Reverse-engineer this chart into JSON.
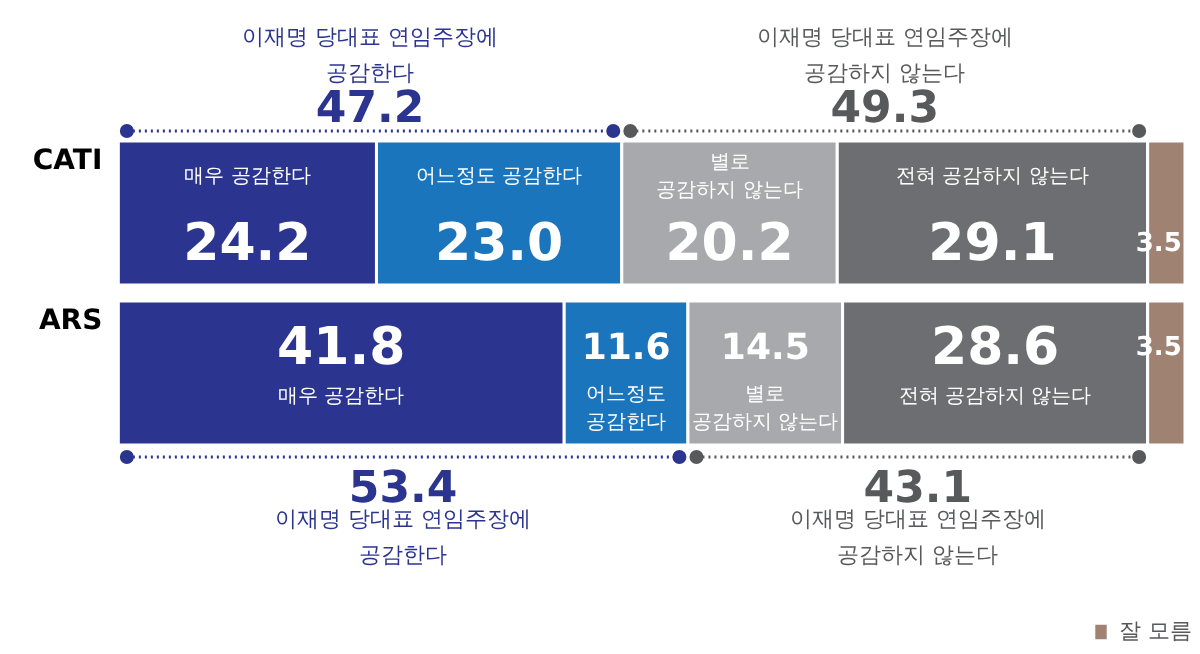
{
  "chart_data": {
    "type": "bar",
    "orientation": "horizontal",
    "stacked": true,
    "legend": "bottom right",
    "categories": [
      "CATI",
      "ARS"
    ],
    "series": [
      {
        "name": "매우 공감한다",
        "color": "#2b3590",
        "values": [
          24.2,
          41.8
        ],
        "value_labels": [
          "24.2",
          "41.8"
        ]
      },
      {
        "name": "어느정도 공감한다",
        "color": "#1b75bc",
        "values": [
          23.0,
          11.6
        ],
        "value_labels": [
          "23.0",
          "11.6"
        ]
      },
      {
        "name": "별로 공감하지 않는다",
        "color": "#a7a9ac",
        "values": [
          20.2,
          14.5
        ],
        "value_labels": [
          "20.2",
          "14.5"
        ]
      },
      {
        "name": "전혀 공감하지 않는다",
        "color": "#6d6e71",
        "values": [
          29.1,
          28.6
        ],
        "value_labels": [
          "29.1",
          "28.6"
        ]
      },
      {
        "name": "잘 모름",
        "color": "#a08272",
        "values": [
          3.5,
          3.5
        ],
        "value_labels": [
          "3.5",
          "3.5"
        ]
      }
    ],
    "annotations": [
      "이재명 당대표 연임주장에\n공감한다",
      "47.2",
      "이재명 당대표 연임주장에\n공감하지 않는다",
      "49.3",
      "53.4",
      "이재명 당대표 연임주장에\n공감한다",
      "43.1",
      "이재명 당대표 연임주장에\n공감하지 않는다"
    ]
  }
}
